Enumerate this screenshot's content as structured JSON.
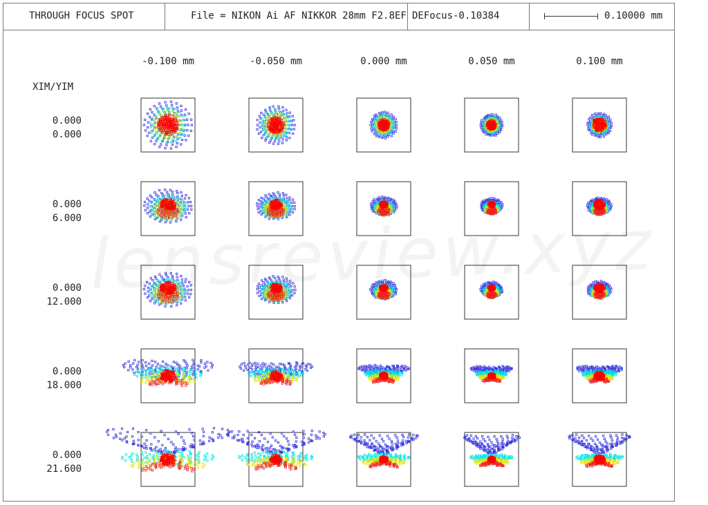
{
  "header": {
    "title": "THROUGH FOCUS SPOT",
    "file": "File = NIKON Ai AF NIKKOR 28mm F2.8EF",
    "defocus": "DEFocus-0.10384",
    "scale_value": "0.10000 mm"
  },
  "axis_label": "XIM/YIM",
  "focus_positions": [
    "-0.100 mm",
    "-0.050 mm",
    "0.000 mm",
    "0.050 mm",
    "0.100 mm"
  ],
  "field_rows": [
    {
      "xim": "0.000",
      "yim": "0.000"
    },
    {
      "xim": "0.000",
      "yim": "6.000"
    },
    {
      "xim": "0.000",
      "yim": "12.000"
    },
    {
      "xim": "0.000",
      "yim": "18.000"
    },
    {
      "xim": "0.000",
      "yim": "21.600"
    }
  ],
  "wavelength_colors": [
    "#3333dd",
    "#00e5e5",
    "#e5e500",
    "#ee2222",
    "#ff0000"
  ],
  "watermark": "lensreview.xyz"
}
